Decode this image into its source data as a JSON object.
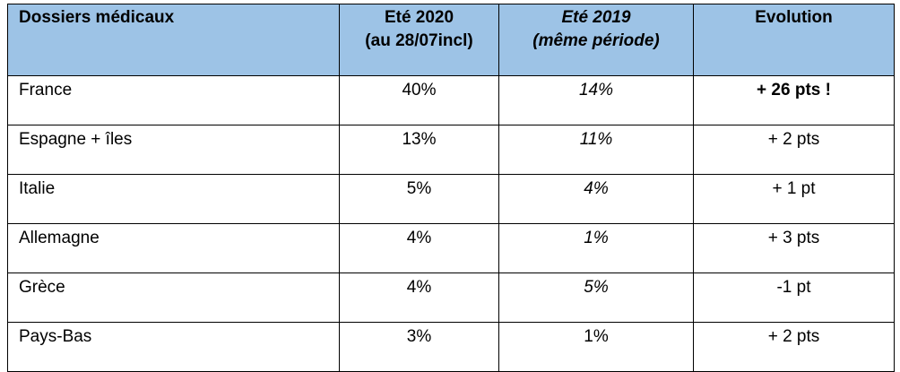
{
  "table": {
    "headers": [
      {
        "lines": [
          "Dossiers médicaux"
        ],
        "italic": false
      },
      {
        "lines": [
          "Eté 2020",
          "(au 28/07incl)"
        ],
        "italic": false
      },
      {
        "lines": [
          "Eté 2019",
          "(même période)"
        ],
        "italic": true
      },
      {
        "lines": [
          "Evolution"
        ],
        "italic": false
      }
    ],
    "rows": [
      {
        "country": "France",
        "ete2020": "40%",
        "ete2019": "14%",
        "ete2019_italic": true,
        "evolution": "+ 26 pts !",
        "evolution_bold": true
      },
      {
        "country": "Espagne + îles",
        "ete2020": "13%",
        "ete2019": "11%",
        "ete2019_italic": true,
        "evolution": "+ 2 pts",
        "evolution_bold": false
      },
      {
        "country": "Italie",
        "ete2020": "5%",
        "ete2019": "4%",
        "ete2019_italic": true,
        "evolution": "+ 1 pt",
        "evolution_bold": false
      },
      {
        "country": "Allemagne",
        "ete2020": "4%",
        "ete2019": "1%",
        "ete2019_italic": true,
        "evolution": "+ 3 pts",
        "evolution_bold": false
      },
      {
        "country": "Grèce",
        "ete2020": "4%",
        "ete2019": "5%",
        "ete2019_italic": true,
        "evolution": "-1 pt",
        "evolution_bold": false
      },
      {
        "country": "Pays-Bas",
        "ete2020": "3%",
        "ete2019": "1%",
        "ete2019_italic": false,
        "evolution": "+ 2 pts",
        "evolution_bold": false
      }
    ]
  },
  "colors": {
    "header_background": "#9dc3e6",
    "border": "#000000",
    "text": "#000000"
  }
}
